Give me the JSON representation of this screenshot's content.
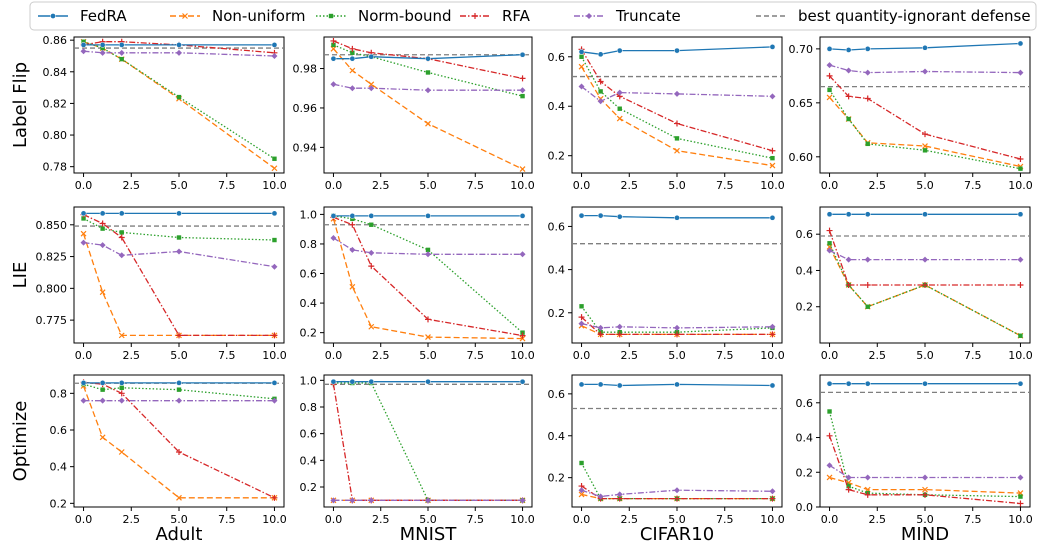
{
  "legend": {
    "entries": [
      {
        "name": "FedRA",
        "color": "#1f77b4",
        "dash": "",
        "marker": "circle"
      },
      {
        "name": "Non-uniform",
        "color": "#ff7f0e",
        "dash": "6,3",
        "marker": "x"
      },
      {
        "name": "Norm-bound",
        "color": "#2ca02c",
        "dash": "1.5,2",
        "marker": "square"
      },
      {
        "name": "RFA",
        "color": "#d62728",
        "dash": "6,2,1.5,2",
        "marker": "plus"
      },
      {
        "name": "Truncate",
        "color": "#9467bd",
        "dash": "6,2,1.5,2",
        "marker": "diamond"
      },
      {
        "name": "best quantity-ignorant defense",
        "color": "#7f7f7f",
        "dash": "5,3",
        "marker": "none"
      }
    ]
  },
  "row_labels": [
    "Label Flip",
    "LIE",
    "Optimize"
  ],
  "col_labels": [
    "Adult",
    "MNIST",
    "CIFAR10",
    "MIND"
  ],
  "chart_data": [
    {
      "type": "line",
      "row": 0,
      "col": 0,
      "x": [
        0,
        1,
        2,
        5,
        10
      ],
      "ylim": [
        0.776,
        0.862
      ],
      "yticks": [
        0.78,
        0.8,
        0.82,
        0.84,
        0.86
      ],
      "yticklabels": [
        "0.78",
        "0.80",
        "0.82",
        "0.84",
        "0.86"
      ],
      "xticks": [
        0,
        2.5,
        5,
        7.5,
        10
      ],
      "xticklabels": [
        "0.0",
        "2.5",
        "5.0",
        "7.5",
        "10.0"
      ],
      "hline": 0.855,
      "series": [
        {
          "name": "FedRA",
          "values": [
            0.857,
            0.857,
            0.857,
            0.857,
            0.857
          ]
        },
        {
          "name": "Non-uniform",
          "values": [
            0.859,
            0.855,
            0.848,
            0.823,
            0.779
          ]
        },
        {
          "name": "Norm-bound",
          "values": [
            0.859,
            0.855,
            0.848,
            0.824,
            0.785
          ]
        },
        {
          "name": "RFA",
          "values": [
            0.857,
            0.859,
            0.859,
            0.857,
            0.852
          ]
        },
        {
          "name": "Truncate",
          "values": [
            0.853,
            0.852,
            0.852,
            0.852,
            0.85
          ]
        }
      ]
    },
    {
      "type": "line",
      "row": 0,
      "col": 1,
      "x": [
        0,
        1,
        2,
        5,
        10
      ],
      "ylim": [
        0.927,
        0.996
      ],
      "yticks": [
        0.94,
        0.96,
        0.98
      ],
      "yticklabels": [
        "0.94",
        "0.96",
        "0.98"
      ],
      "xticks": [
        0,
        2.5,
        5,
        7.5,
        10
      ],
      "xticklabels": [
        "0.0",
        "2.5",
        "5.0",
        "7.5",
        "10.0"
      ],
      "hline": 0.987,
      "series": [
        {
          "name": "FedRA",
          "values": [
            0.985,
            0.985,
            0.986,
            0.985,
            0.987
          ]
        },
        {
          "name": "Non-uniform",
          "values": [
            0.99,
            0.979,
            0.972,
            0.952,
            0.929
          ]
        },
        {
          "name": "Norm-bound",
          "values": [
            0.992,
            0.988,
            0.986,
            0.978,
            0.966
          ]
        },
        {
          "name": "RFA",
          "values": [
            0.994,
            0.99,
            0.988,
            0.985,
            0.975
          ]
        },
        {
          "name": "Truncate",
          "values": [
            0.972,
            0.97,
            0.97,
            0.969,
            0.969
          ]
        }
      ]
    },
    {
      "type": "line",
      "row": 0,
      "col": 2,
      "x": [
        0,
        1,
        2,
        5,
        10
      ],
      "ylim": [
        0.13,
        0.68
      ],
      "yticks": [
        0.2,
        0.4,
        0.6
      ],
      "yticklabels": [
        "0.2",
        "0.4",
        "0.6"
      ],
      "xticks": [
        0,
        2.5,
        5,
        7.5,
        10
      ],
      "xticklabels": [
        "0.0",
        "2.5",
        "5.0",
        "7.5",
        "10.0"
      ],
      "hline": 0.52,
      "series": [
        {
          "name": "FedRA",
          "values": [
            0.62,
            0.61,
            0.625,
            0.625,
            0.64
          ]
        },
        {
          "name": "Non-uniform",
          "values": [
            0.56,
            0.43,
            0.35,
            0.22,
            0.16
          ]
        },
        {
          "name": "Norm-bound",
          "values": [
            0.6,
            0.46,
            0.39,
            0.27,
            0.19
          ]
        },
        {
          "name": "RFA",
          "values": [
            0.63,
            0.5,
            0.44,
            0.33,
            0.22
          ]
        },
        {
          "name": "Truncate",
          "values": [
            0.48,
            0.42,
            0.455,
            0.45,
            0.44
          ]
        }
      ]
    },
    {
      "type": "line",
      "row": 0,
      "col": 3,
      "x": [
        0,
        1,
        2,
        5,
        10
      ],
      "ylim": [
        0.585,
        0.711
      ],
      "yticks": [
        0.6,
        0.65,
        0.7
      ],
      "yticklabels": [
        "0.60",
        "0.65",
        "0.70"
      ],
      "xticks": [
        0,
        2.5,
        5,
        7.5,
        10
      ],
      "xticklabels": [
        "0.0",
        "2.5",
        "5.0",
        "7.5",
        "10.0"
      ],
      "hline": 0.665,
      "series": [
        {
          "name": "FedRA",
          "values": [
            0.7,
            0.699,
            0.7,
            0.701,
            0.705
          ]
        },
        {
          "name": "Non-uniform",
          "values": [
            0.655,
            0.635,
            0.613,
            0.61,
            0.591
          ]
        },
        {
          "name": "Norm-bound",
          "values": [
            0.662,
            0.635,
            0.612,
            0.606,
            0.589
          ]
        },
        {
          "name": "RFA",
          "values": [
            0.675,
            0.656,
            0.654,
            0.621,
            0.598
          ]
        },
        {
          "name": "Truncate",
          "values": [
            0.685,
            0.68,
            0.678,
            0.679,
            0.678
          ]
        }
      ]
    },
    {
      "type": "line",
      "row": 1,
      "col": 0,
      "x": [
        0,
        1,
        2,
        5,
        10
      ],
      "ylim": [
        0.757,
        0.864
      ],
      "yticks": [
        0.775,
        0.8,
        0.825,
        0.85
      ],
      "yticklabels": [
        "0.775",
        "0.800",
        "0.825",
        "0.850"
      ],
      "xticks": [
        0,
        2.5,
        5,
        7.5,
        10
      ],
      "xticklabels": [
        "0.0",
        "2.5",
        "5.0",
        "7.5",
        "10.0"
      ],
      "hline": 0.849,
      "series": [
        {
          "name": "FedRA",
          "values": [
            0.859,
            0.859,
            0.859,
            0.859,
            0.859
          ]
        },
        {
          "name": "Non-uniform",
          "values": [
            0.843,
            0.797,
            0.763,
            0.763,
            0.763
          ]
        },
        {
          "name": "Norm-bound",
          "values": [
            0.855,
            0.847,
            0.844,
            0.84,
            0.838
          ]
        },
        {
          "name": "RFA",
          "values": [
            0.858,
            0.851,
            0.84,
            0.763,
            0.763
          ]
        },
        {
          "name": "Truncate",
          "values": [
            0.836,
            0.834,
            0.826,
            0.829,
            0.817
          ]
        }
      ]
    },
    {
      "type": "line",
      "row": 1,
      "col": 1,
      "x": [
        0,
        1,
        2,
        5,
        10
      ],
      "ylim": [
        0.13,
        1.05
      ],
      "yticks": [
        0.2,
        0.4,
        0.6,
        0.8,
        1.0
      ],
      "yticklabels": [
        "0.2",
        "0.4",
        "0.6",
        "0.8",
        "1.0"
      ],
      "xticks": [
        0,
        2.5,
        5,
        7.5,
        10
      ],
      "xticklabels": [
        "0.0",
        "2.5",
        "5.0",
        "7.5",
        "10.0"
      ],
      "hline": 0.93,
      "series": [
        {
          "name": "FedRA",
          "values": [
            0.99,
            0.99,
            0.99,
            0.99,
            0.99
          ]
        },
        {
          "name": "Non-uniform",
          "values": [
            0.97,
            0.51,
            0.24,
            0.17,
            0.16
          ]
        },
        {
          "name": "Norm-bound",
          "values": [
            0.99,
            0.97,
            0.93,
            0.76,
            0.2
          ]
        },
        {
          "name": "RFA",
          "values": [
            0.98,
            0.93,
            0.65,
            0.29,
            0.18
          ]
        },
        {
          "name": "Truncate",
          "values": [
            0.84,
            0.76,
            0.74,
            0.73,
            0.73
          ]
        }
      ]
    },
    {
      "type": "line",
      "row": 1,
      "col": 2,
      "x": [
        0,
        1,
        2,
        5,
        10
      ],
      "ylim": [
        0.06,
        0.69
      ],
      "yticks": [
        0.2,
        0.4,
        0.6
      ],
      "yticklabels": [
        "0.2",
        "0.4",
        "0.6"
      ],
      "xticks": [
        0,
        2.5,
        5,
        7.5,
        10
      ],
      "xticklabels": [
        "0.0",
        "2.5",
        "5.0",
        "7.5",
        "10.0"
      ],
      "hline": 0.52,
      "series": [
        {
          "name": "FedRA",
          "values": [
            0.65,
            0.65,
            0.645,
            0.64,
            0.64
          ]
        },
        {
          "name": "Non-uniform",
          "values": [
            0.14,
            0.1,
            0.1,
            0.1,
            0.1
          ]
        },
        {
          "name": "Norm-bound",
          "values": [
            0.23,
            0.11,
            0.11,
            0.11,
            0.13
          ]
        },
        {
          "name": "RFA",
          "values": [
            0.18,
            0.1,
            0.1,
            0.1,
            0.1
          ]
        },
        {
          "name": "Truncate",
          "values": [
            0.15,
            0.13,
            0.135,
            0.13,
            0.135
          ]
        }
      ]
    },
    {
      "type": "line",
      "row": 1,
      "col": 3,
      "x": [
        0,
        1,
        2,
        5,
        10
      ],
      "ylim": [
        0.0,
        0.75
      ],
      "yticks": [
        0.2,
        0.4,
        0.6
      ],
      "yticklabels": [
        "0.2",
        "0.4",
        "0.6"
      ],
      "xticks": [
        0,
        2.5,
        5,
        7.5,
        10
      ],
      "xticklabels": [
        "0.0",
        "2.5",
        "5.0",
        "7.5",
        "10.0"
      ],
      "hline": 0.59,
      "series": [
        {
          "name": "FedRA",
          "values": [
            0.71,
            0.71,
            0.71,
            0.71,
            0.71
          ]
        },
        {
          "name": "Non-uniform",
          "values": [
            0.53,
            0.32,
            0.2,
            0.32,
            0.04
          ]
        },
        {
          "name": "Norm-bound",
          "values": [
            0.55,
            0.32,
            0.2,
            0.32,
            0.04
          ]
        },
        {
          "name": "RFA",
          "values": [
            0.62,
            0.32,
            0.32,
            0.32,
            0.32
          ]
        },
        {
          "name": "Truncate",
          "values": [
            0.51,
            0.46,
            0.46,
            0.46,
            0.46
          ]
        }
      ]
    },
    {
      "type": "line",
      "row": 2,
      "col": 0,
      "x": [
        0,
        1,
        2,
        5,
        10
      ],
      "ylim": [
        0.18,
        0.9
      ],
      "yticks": [
        0.2,
        0.4,
        0.6,
        0.8
      ],
      "yticklabels": [
        "0.2",
        "0.4",
        "0.6",
        "0.8"
      ],
      "xticks": [
        0,
        2.5,
        5,
        7.5,
        10
      ],
      "xticklabels": [
        "0.0",
        "2.5",
        "5.0",
        "7.5",
        "10.0"
      ],
      "hline": 0.855,
      "series": [
        {
          "name": "FedRA",
          "values": [
            0.857,
            0.857,
            0.857,
            0.857,
            0.857
          ]
        },
        {
          "name": "Non-uniform",
          "values": [
            0.84,
            0.56,
            0.48,
            0.23,
            0.23
          ]
        },
        {
          "name": "Norm-bound",
          "values": [
            0.85,
            0.82,
            0.83,
            0.82,
            0.77
          ]
        },
        {
          "name": "RFA",
          "values": [
            0.86,
            0.85,
            0.8,
            0.48,
            0.23
          ]
        },
        {
          "name": "Truncate",
          "values": [
            0.76,
            0.76,
            0.76,
            0.76,
            0.76
          ]
        }
      ]
    },
    {
      "type": "line",
      "row": 2,
      "col": 1,
      "x": [
        0,
        1,
        2,
        5,
        10
      ],
      "ylim": [
        0.05,
        1.04
      ],
      "yticks": [
        0.2,
        0.4,
        0.6,
        0.8,
        1.0
      ],
      "yticklabels": [
        "0.2",
        "0.4",
        "0.6",
        "0.8",
        "1.0"
      ],
      "xticks": [
        0,
        2.5,
        5,
        7.5,
        10
      ],
      "xticklabels": [
        "0.0",
        "2.5",
        "5.0",
        "7.5",
        "10.0"
      ],
      "hline": 0.97,
      "series": [
        {
          "name": "FedRA",
          "values": [
            0.99,
            0.99,
            0.99,
            0.99,
            0.99
          ]
        },
        {
          "name": "Non-uniform",
          "values": [
            0.1,
            0.1,
            0.1,
            0.1,
            0.1
          ]
        },
        {
          "name": "Norm-bound",
          "values": [
            0.98,
            0.98,
            0.98,
            0.1,
            0.1
          ]
        },
        {
          "name": "RFA",
          "values": [
            0.97,
            0.1,
            0.1,
            0.1,
            0.1
          ]
        },
        {
          "name": "Truncate",
          "values": [
            0.1,
            0.1,
            0.1,
            0.1,
            0.1
          ]
        }
      ]
    },
    {
      "type": "line",
      "row": 2,
      "col": 2,
      "x": [
        0,
        1,
        2,
        5,
        10
      ],
      "ylim": [
        0.06,
        0.69
      ],
      "yticks": [
        0.2,
        0.4,
        0.6
      ],
      "yticklabels": [
        "0.2",
        "0.4",
        "0.6"
      ],
      "xticks": [
        0,
        2.5,
        5,
        7.5,
        10
      ],
      "xticklabels": [
        "0.0",
        "2.5",
        "5.0",
        "7.5",
        "10.0"
      ],
      "hline": 0.53,
      "series": [
        {
          "name": "FedRA",
          "values": [
            0.645,
            0.645,
            0.64,
            0.645,
            0.64
          ]
        },
        {
          "name": "Non-uniform",
          "values": [
            0.12,
            0.1,
            0.1,
            0.1,
            0.1
          ]
        },
        {
          "name": "Norm-bound",
          "values": [
            0.27,
            0.1,
            0.1,
            0.1,
            0.1
          ]
        },
        {
          "name": "RFA",
          "values": [
            0.16,
            0.1,
            0.1,
            0.1,
            0.1
          ]
        },
        {
          "name": "Truncate",
          "values": [
            0.14,
            0.11,
            0.12,
            0.14,
            0.135
          ]
        }
      ]
    },
    {
      "type": "line",
      "row": 2,
      "col": 3,
      "x": [
        0,
        1,
        2,
        5,
        10
      ],
      "ylim": [
        0.0,
        0.76
      ],
      "yticks": [
        0.0,
        0.2,
        0.4,
        0.6
      ],
      "yticklabels": [
        "0.0",
        "0.2",
        "0.4",
        "0.6"
      ],
      "xticks": [
        0,
        2.5,
        5,
        7.5,
        10
      ],
      "xticklabels": [
        "0.0",
        "2.5",
        "5.0",
        "7.5",
        "10.0"
      ],
      "hline": 0.66,
      "series": [
        {
          "name": "FedRA",
          "values": [
            0.71,
            0.71,
            0.71,
            0.71,
            0.71
          ]
        },
        {
          "name": "Non-uniform",
          "values": [
            0.17,
            0.14,
            0.1,
            0.1,
            0.08
          ]
        },
        {
          "name": "Norm-bound",
          "values": [
            0.55,
            0.12,
            0.08,
            0.07,
            0.06
          ]
        },
        {
          "name": "RFA",
          "values": [
            0.41,
            0.1,
            0.07,
            0.07,
            0.02
          ]
        },
        {
          "name": "Truncate",
          "values": [
            0.24,
            0.17,
            0.17,
            0.17,
            0.17
          ]
        }
      ]
    }
  ]
}
